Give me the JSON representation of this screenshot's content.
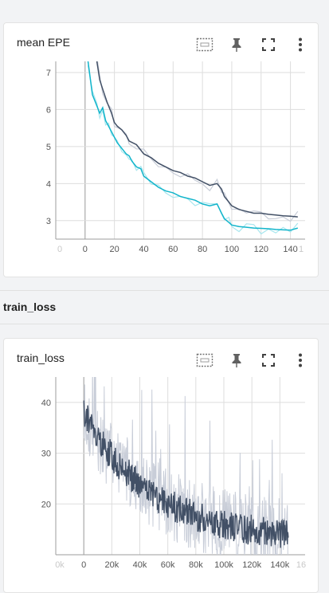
{
  "section": {
    "title": "train_loss"
  },
  "cards": [
    {
      "title": "mean EPE",
      "toolbar": {
        "icons": [
          "fit-domain-icon",
          "pin-icon",
          "fullscreen-icon",
          "more-vert-icon"
        ]
      }
    },
    {
      "title": "train_loss",
      "toolbar": {
        "icons": [
          "fit-domain-icon",
          "pin-icon",
          "fullscreen-icon",
          "more-vert-icon"
        ]
      }
    }
  ],
  "colors": {
    "series_dark": "#425066",
    "series_cyan": "#12b5cb",
    "smoothed_shadow_dark": "#c8cdd8",
    "smoothed_shadow_cyan": "#a8e6ee",
    "grid": "#dddddd",
    "axis_zero": "#999999"
  },
  "chart_data": [
    {
      "type": "line",
      "xlim": [
        -20,
        150
      ],
      "ylim": [
        2.5,
        7.3
      ],
      "x_ticks": [
        "0",
        "20",
        "40",
        "60",
        "80",
        "100",
        "120",
        "140"
      ],
      "x_ticks_faded": [
        "0",
        "1"
      ],
      "y_ticks": [
        "3",
        "4",
        "5",
        "6",
        "7"
      ],
      "grid": true,
      "series": [
        {
          "color": "dark",
          "x": [
            8,
            10,
            12,
            15,
            18,
            20,
            22,
            25,
            28,
            30,
            35,
            40,
            45,
            50,
            55,
            60,
            65,
            70,
            75,
            80,
            85,
            90,
            93,
            95,
            98,
            100,
            105,
            110,
            115,
            120,
            125,
            130,
            135,
            140,
            145
          ],
          "y": [
            7.3,
            6.8,
            6.55,
            6.2,
            5.9,
            5.65,
            5.55,
            5.45,
            5.3,
            5.15,
            5.05,
            4.8,
            4.7,
            4.55,
            4.45,
            4.35,
            4.3,
            4.2,
            4.15,
            4.05,
            3.95,
            4.0,
            3.85,
            3.65,
            3.5,
            3.4,
            3.3,
            3.25,
            3.2,
            3.2,
            3.17,
            3.15,
            3.13,
            3.12,
            3.1
          ]
        },
        {
          "color": "cyan",
          "x": [
            2,
            5,
            8,
            10,
            12,
            14,
            16,
            18,
            20,
            22,
            25,
            28,
            30,
            32,
            35,
            38,
            40,
            45,
            50,
            55,
            60,
            65,
            70,
            75,
            80,
            85,
            90,
            93,
            95,
            98,
            100,
            105,
            110,
            115,
            120,
            125,
            130,
            135,
            140,
            145
          ],
          "y": [
            7.3,
            6.4,
            6.1,
            5.9,
            6.05,
            5.7,
            5.55,
            5.4,
            5.25,
            5.1,
            4.95,
            4.8,
            4.75,
            4.6,
            4.45,
            4.4,
            4.2,
            4.05,
            3.9,
            3.8,
            3.75,
            3.65,
            3.6,
            3.55,
            3.45,
            3.4,
            3.45,
            3.2,
            3.05,
            2.95,
            2.88,
            2.84,
            2.82,
            2.8,
            2.79,
            2.78,
            2.76,
            2.75,
            2.74,
            2.8
          ]
        }
      ]
    },
    {
      "type": "line",
      "xlim": [
        -20000,
        158000
      ],
      "ylim": [
        10,
        45
      ],
      "x_ticks": [
        "0",
        "20k",
        "40k",
        "60k",
        "80k",
        "100k",
        "120k",
        "140k"
      ],
      "x_ticks_faded": [
        "0k",
        "16"
      ],
      "y_ticks": [
        "20",
        "30",
        "40"
      ],
      "grid": true,
      "series": [
        {
          "color": "dark",
          "x_start": 0,
          "x_end": 146000,
          "y_start": 38,
          "y_end": 14
        }
      ]
    }
  ]
}
